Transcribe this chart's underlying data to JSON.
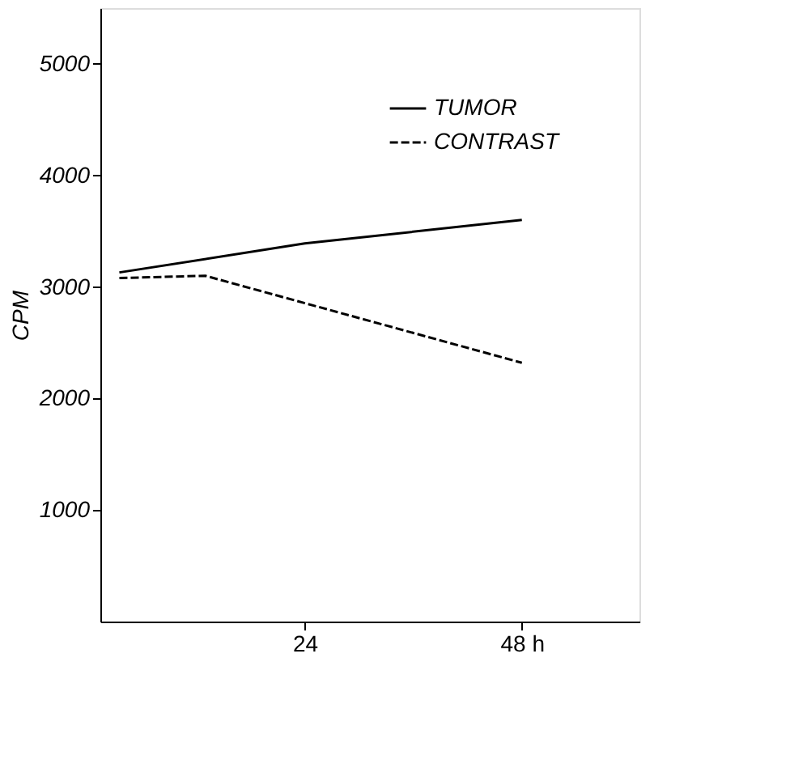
{
  "chart_data": {
    "type": "line",
    "ylabel": "CPM",
    "xlim": [
      1.4,
      61
    ],
    "xticks": [
      24,
      {
        "value": 48,
        "label": "48 h"
      }
    ],
    "ylim": [
      0,
      5500
    ],
    "yticks": [
      1000,
      2000,
      3000,
      4000,
      5000
    ],
    "grid": false,
    "legend": "top right",
    "marker": "none",
    "series": [
      {
        "name": "TUMOR",
        "color": "#000000",
        "line_style": "solid",
        "x": [
          3.5,
          24,
          48
        ],
        "values": [
          3130,
          3390,
          3600
        ]
      },
      {
        "name": "CONTRAST",
        "color": "#000000",
        "line_style": "dashed",
        "x": [
          3.5,
          13,
          48
        ],
        "values": [
          3080,
          3100,
          2320
        ]
      }
    ]
  }
}
